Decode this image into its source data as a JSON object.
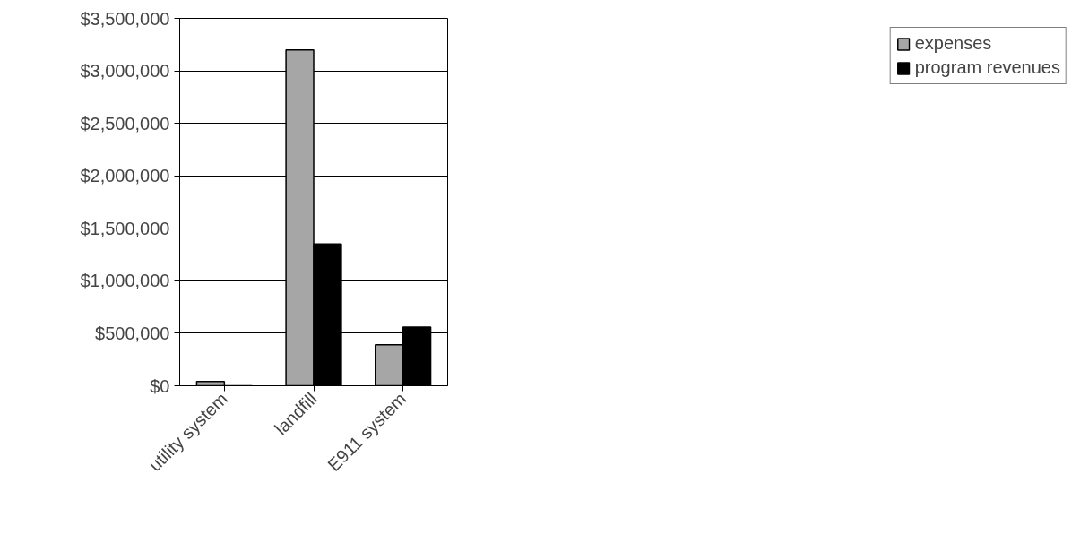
{
  "chart_data": {
    "type": "bar",
    "categories": [
      "utility system",
      "landfill",
      "E911 system"
    ],
    "series": [
      {
        "name": "expenses",
        "color": "#a6a6a6",
        "values": [
          40000,
          3200000,
          390000
        ]
      },
      {
        "name": "program revenues",
        "color": "#000000",
        "values": [
          0,
          1350000,
          560000
        ]
      }
    ],
    "ylim": [
      0,
      3500000
    ],
    "yticks": [
      {
        "value": 0,
        "label": "$0"
      },
      {
        "value": 500000,
        "label": "$500,000"
      },
      {
        "value": 1000000,
        "label": "$1,000,000"
      },
      {
        "value": 1500000,
        "label": "$1,500,000"
      },
      {
        "value": 2000000,
        "label": "$2,000,000"
      },
      {
        "value": 2500000,
        "label": "$2,500,000"
      },
      {
        "value": 3000000,
        "label": "$3,000,000"
      },
      {
        "value": 3500000,
        "label": "$3,500,000"
      }
    ],
    "grid": "y",
    "legend": "right"
  }
}
